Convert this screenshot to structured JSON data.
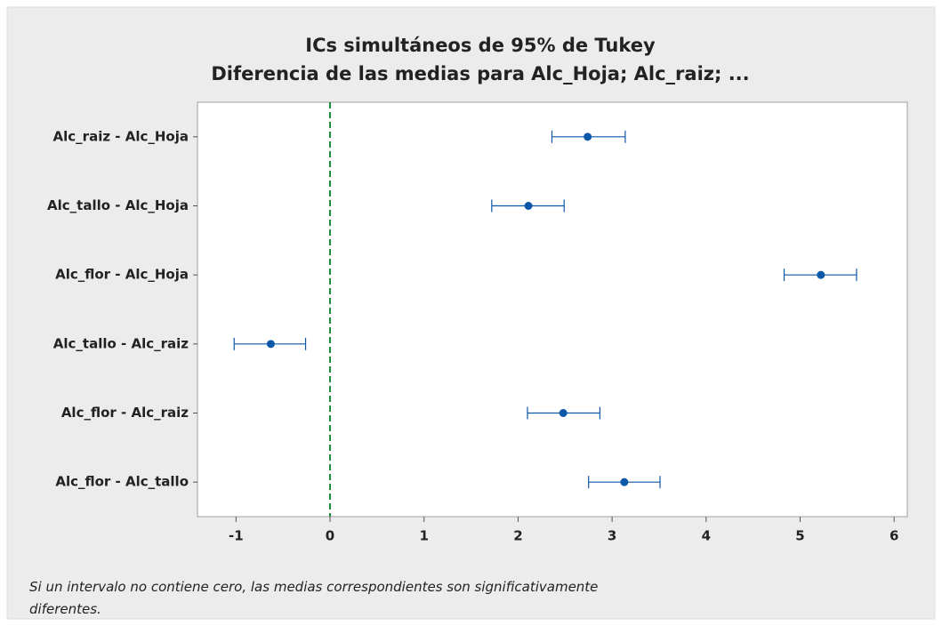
{
  "chart_data": {
    "type": "interval",
    "title": "ICs simultáneos de 95% de Tukey",
    "subtitle": "Diferencia de las medias para Alc_Hoja; Alc_raiz; ...",
    "categories": [
      "Alc_raiz - Alc_Hoja",
      "Alc_tallo - Alc_Hoja",
      "Alc_flor - Alc_Hoja",
      "Alc_tallo - Alc_raiz",
      "Alc_flor - Alc_raiz",
      "Alc_flor - Alc_tallo"
    ],
    "values": [
      2.74,
      2.11,
      5.22,
      -0.63,
      2.48,
      3.13
    ],
    "lower": [
      2.36,
      1.72,
      4.83,
      -1.02,
      2.1,
      2.75
    ],
    "upper": [
      3.14,
      2.49,
      5.6,
      -0.26,
      2.87,
      3.51
    ],
    "color": "#0b57a8",
    "reference_line": 0,
    "reference_color": "#1a8a3a",
    "xlim": [
      -1.41,
      6.14
    ],
    "xticks": [
      -1,
      0,
      1,
      2,
      3,
      4,
      5,
      6
    ],
    "note": "Si un intervalo no contiene cero, las medias correspondientes son significativamente diferentes."
  }
}
